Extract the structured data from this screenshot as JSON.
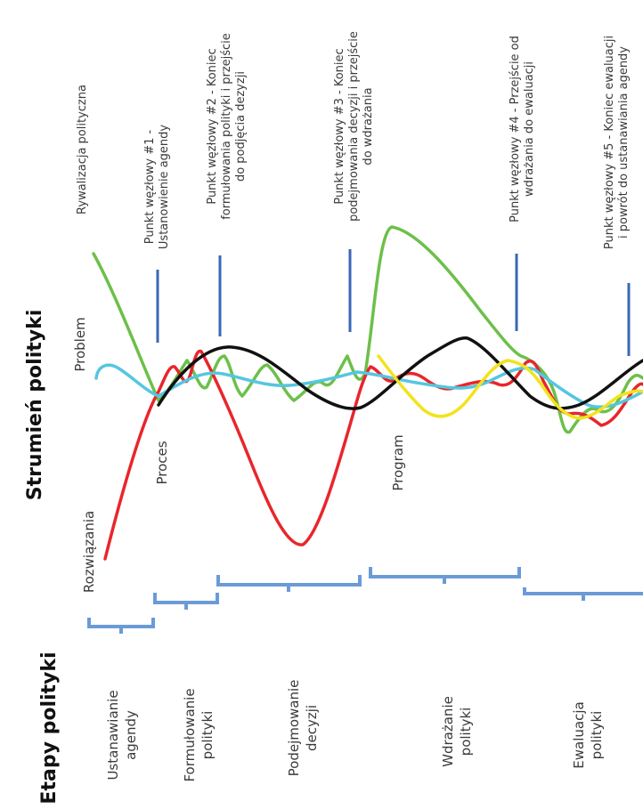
{
  "colors": {
    "green": "#6cc04a",
    "red": "#e8262b",
    "black": "#111111",
    "cyan": "#55c6e0",
    "yellow": "#f2e31c",
    "marker": "#3a67b8",
    "bracket": "#6a9bd8"
  },
  "headings": {
    "streams": "Strumień polityki",
    "stages": "Etapy polityki"
  },
  "streams": {
    "rivalry": "Rywalizacja polityczna",
    "problem": "Problem",
    "process": "Proces",
    "solutions": "Rozwiązania",
    "program": "Program"
  },
  "nodes": [
    {
      "line1": "Punkt węzłowy #1 -",
      "line2": "Ustanowienie agendy",
      "line3": ""
    },
    {
      "line1": "Punkt węzłowy #2 - Koniec",
      "line2": "formułowania polityki i przejście",
      "line3": "do podjęcia dezyzji"
    },
    {
      "line1": "Punkt węzłowy #3 - Koniec",
      "line2": "podejmowania decyzji i przejście",
      "line3": "do wdrażania"
    },
    {
      "line1": "Punkt węzłowy #4 - Przejście od",
      "line2": "wdrażania do ewaluacji",
      "line3": ""
    },
    {
      "line1": "Punkt węzłowy #5 - Koniec ewaluacji",
      "line2": "i powrót do ustanawiania agendy",
      "line3": ""
    }
  ],
  "stages": [
    {
      "line1": "Ustanawianie",
      "line2": "agendy"
    },
    {
      "line1": "Formułowanie",
      "line2": "polityki"
    },
    {
      "line1": "Podejmowanie",
      "line2": "decyzji"
    },
    {
      "line1": "Wdrażanie",
      "line2": "polityki"
    },
    {
      "line1": "Ewaluacja",
      "line2": "polityki"
    }
  ]
}
